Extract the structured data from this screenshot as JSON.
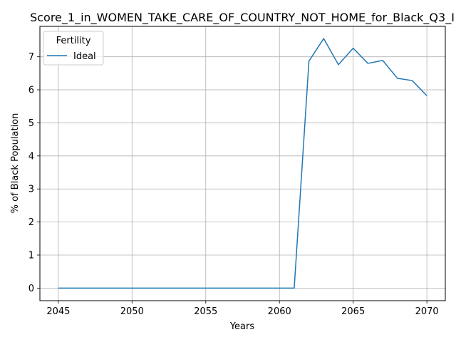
{
  "chart_data": {
    "type": "line",
    "title": "Score_1_in_WOMEN_TAKE_CARE_OF_COUNTRY_NOT_HOME_for_Black_Q3_I",
    "xlabel": "Years",
    "ylabel": "% of Black Population",
    "xlim": [
      2043.75,
      2071.25
    ],
    "ylim": [
      -0.38,
      7.92
    ],
    "xticks": [
      2045,
      2050,
      2055,
      2060,
      2065,
      2070
    ],
    "yticks": [
      0,
      1,
      2,
      3,
      4,
      5,
      6,
      7
    ],
    "grid": true,
    "legend": {
      "title": "Fertility",
      "placement": "top-left"
    },
    "series": [
      {
        "name": "Ideal",
        "color": "#1f77b4",
        "x": [
          2045,
          2046,
          2047,
          2048,
          2049,
          2050,
          2051,
          2052,
          2053,
          2054,
          2055,
          2056,
          2057,
          2058,
          2059,
          2060,
          2061,
          2062,
          2063,
          2064,
          2065,
          2066,
          2067,
          2068,
          2069,
          2070
        ],
        "y": [
          0,
          0,
          0,
          0,
          0,
          0,
          0,
          0,
          0,
          0,
          0,
          0,
          0,
          0,
          0,
          0,
          0,
          6.87,
          7.55,
          6.76,
          7.26,
          6.8,
          6.89,
          6.35,
          6.28,
          5.82
        ]
      }
    ]
  }
}
